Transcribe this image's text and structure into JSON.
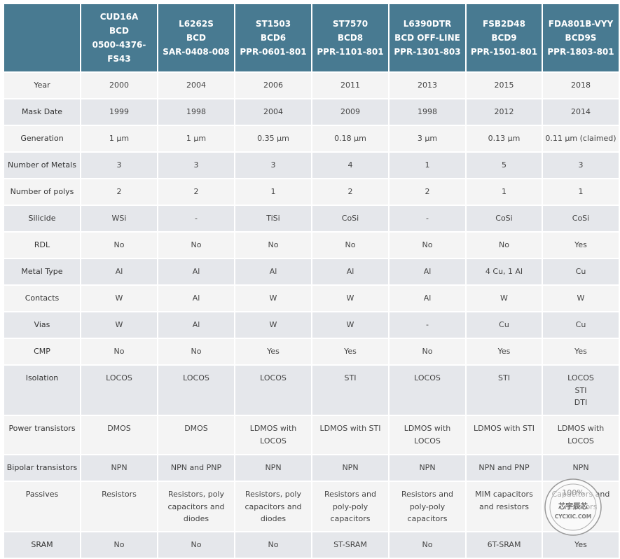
{
  "table": {
    "corner": "",
    "columns": [
      "CUD16A\nBCD\n0500-4376-\nFS43",
      "L6262S\nBCD\nSAR-0408-008",
      "ST1503\nBCD6\nPPR-0601-801",
      "ST7570\nBCD8\nPPR-1101-801",
      "L6390DTR\nBCD OFF-LINE\nPPR-1301-803",
      "FSB2D48\nBCD9\nPPR-1501-801",
      "FDA801B-VYY\nBCD9S\nPPR-1803-801"
    ],
    "rows": [
      {
        "label": "Year",
        "cells": [
          "2000",
          "2004",
          "2006",
          "2011",
          "2013",
          "2015",
          "2018"
        ]
      },
      {
        "label": "Mask Date",
        "cells": [
          "1999",
          "1998",
          "2004",
          "2009",
          "1998",
          "2012",
          "2014"
        ]
      },
      {
        "label": "Generation",
        "cells": [
          "1 µm",
          "1 µm",
          "0.35 µm",
          "0.18 µm",
          "3 µm",
          "0.13 µm",
          "0.11 µm (claimed)"
        ]
      },
      {
        "label": "Number of Metals",
        "cells": [
          "3",
          "3",
          "3",
          "4",
          "1",
          "5",
          "3"
        ]
      },
      {
        "label": "Number of polys",
        "cells": [
          "2",
          "2",
          "1",
          "2",
          "2",
          "1",
          "1"
        ]
      },
      {
        "label": "Silicide",
        "cells": [
          "WSi",
          "-",
          "TiSi",
          "CoSi",
          "-",
          "CoSi",
          "CoSi"
        ]
      },
      {
        "label": "RDL",
        "cells": [
          "No",
          "No",
          "No",
          "No",
          "No",
          "No",
          "Yes"
        ]
      },
      {
        "label": "Metal Type",
        "cells": [
          "Al",
          "Al",
          "Al",
          "Al",
          "Al",
          "4 Cu, 1 Al",
          "Cu"
        ]
      },
      {
        "label": "Contacts",
        "cells": [
          "W",
          "Al",
          "W",
          "W",
          "Al",
          "W",
          "W"
        ]
      },
      {
        "label": "Vias",
        "cells": [
          "W",
          "Al",
          "W",
          "W",
          "-",
          "Cu",
          "Cu"
        ]
      },
      {
        "label": "CMP",
        "cells": [
          "No",
          "No",
          "Yes",
          "Yes",
          "No",
          "Yes",
          "Yes"
        ]
      },
      {
        "label": "Isolation",
        "cells": [
          "LOCOS",
          "LOCOS",
          "LOCOS",
          "STI",
          "LOCOS",
          "STI",
          "LOCOS\nSTI\nDTI"
        ]
      },
      {
        "label": "Power transistors",
        "cells": [
          "DMOS",
          "DMOS",
          "LDMOS with\nLOCOS",
          "LDMOS with STI",
          "LDMOS with\nLOCOS",
          "LDMOS with STI",
          "LDMOS with\nLOCOS"
        ]
      },
      {
        "label": "Bipolar transistors",
        "cells": [
          "NPN",
          "NPN and PNP",
          "NPN",
          "NPN",
          "NPN",
          "NPN and PNP",
          "NPN"
        ]
      },
      {
        "label": "Passives",
        "cells": [
          "Resistors",
          "Resistors, poly\ncapacitors and\ndiodes",
          "Resistors, poly\ncapacitors and\ndiodes",
          "Resistors and\npoly-poly\ncapacitors",
          "Resistors and\npoly-poly\ncapacitors",
          "MIM capacitors\nand resistors",
          "Capacitors and\nresistors"
        ]
      },
      {
        "label": "SRAM",
        "cells": [
          "No",
          "No",
          "No",
          "ST-SRAM",
          "No",
          "6T-SRAM",
          "Yes"
        ]
      }
    ]
  },
  "watermark": {
    "badge": "100%",
    "name": "芯宇辰芯",
    "site": "CYCXIC.COM"
  }
}
